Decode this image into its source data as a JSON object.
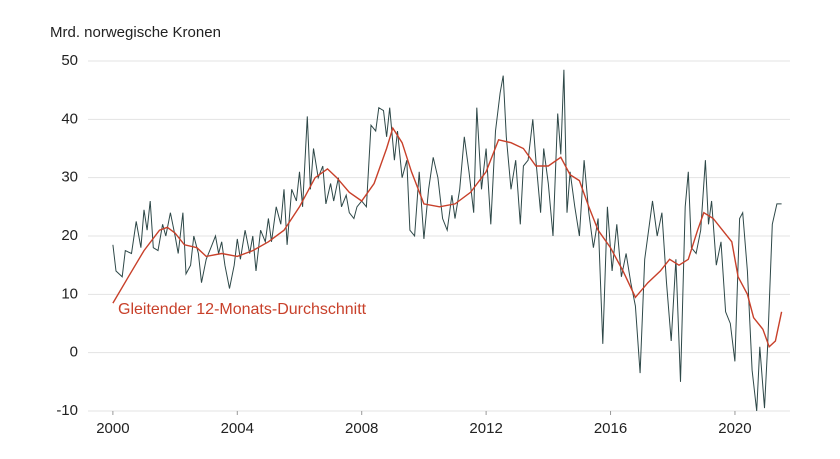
{
  "chart_data": {
    "type": "line",
    "ylabel": "Mrd. norwegische Kronen",
    "xlim": [
      1999.2,
      2021.77
    ],
    "xticks": [
      2000,
      2004,
      2008,
      2012,
      2016,
      2020
    ],
    "ylim": [
      -10,
      50
    ],
    "yticks": [
      -10,
      0,
      10,
      20,
      30,
      40,
      50
    ],
    "grid": true,
    "series": [
      {
        "color": "#2e4848",
        "x": [
          2000.0,
          2000.1,
          2000.3,
          2000.4,
          2000.6,
          2000.75,
          2000.9,
          2001.0,
          2001.1,
          2001.2,
          2001.3,
          2001.45,
          2001.6,
          2001.7,
          2001.85,
          2002.0,
          2002.1,
          2002.25,
          2002.35,
          2002.5,
          2002.6,
          2002.75,
          2002.85,
          2003.0,
          2003.15,
          2003.3,
          2003.4,
          2003.5,
          2003.6,
          2003.75,
          2003.9,
          2004.0,
          2004.1,
          2004.25,
          2004.4,
          2004.5,
          2004.6,
          2004.75,
          2004.9,
          2005.0,
          2005.1,
          2005.25,
          2005.4,
          2005.5,
          2005.6,
          2005.75,
          2005.9,
          2006.0,
          2006.1,
          2006.25,
          2006.35,
          2006.45,
          2006.6,
          2006.75,
          2006.85,
          2007.0,
          2007.1,
          2007.25,
          2007.35,
          2007.5,
          2007.6,
          2007.75,
          2007.85,
          2008.0,
          2008.15,
          2008.3,
          2008.45,
          2008.55,
          2008.7,
          2008.8,
          2008.9,
          2009.05,
          2009.15,
          2009.3,
          2009.45,
          2009.55,
          2009.7,
          2009.85,
          2010.0,
          2010.15,
          2010.3,
          2010.45,
          2010.6,
          2010.75,
          2010.9,
          2011.0,
          2011.15,
          2011.3,
          2011.45,
          2011.6,
          2011.7,
          2011.85,
          2012.0,
          2012.15,
          2012.3,
          2012.45,
          2012.55,
          2012.65,
          2012.8,
          2012.95,
          2013.1,
          2013.2,
          2013.35,
          2013.5,
          2013.6,
          2013.75,
          2013.85,
          2014.0,
          2014.15,
          2014.3,
          2014.4,
          2014.5,
          2014.6,
          2014.7,
          2014.85,
          2015.0,
          2015.15,
          2015.3,
          2015.45,
          2015.6,
          2015.75,
          2015.9,
          2016.05,
          2016.2,
          2016.35,
          2016.5,
          2016.65,
          2016.8,
          2016.95,
          2017.1,
          2017.25,
          2017.35,
          2017.5,
          2017.65,
          2017.8,
          2017.95,
          2018.1,
          2018.25,
          2018.4,
          2018.5,
          2018.6,
          2018.75,
          2018.9,
          2019.05,
          2019.15,
          2019.25,
          2019.4,
          2019.55,
          2019.7,
          2019.85,
          2020.0,
          2020.15,
          2020.25,
          2020.4,
          2020.55,
          2020.7,
          2020.8,
          2020.95,
          2021.05,
          2021.2,
          2021.35,
          2021.5
        ],
        "values": [
          18.5,
          14,
          13,
          17.5,
          17,
          22.5,
          18,
          24.5,
          21,
          26,
          18,
          17.5,
          22,
          20,
          24,
          20,
          17,
          24,
          13.5,
          15,
          20,
          17,
          12,
          16,
          18,
          20,
          17,
          19,
          15,
          11,
          15,
          19.5,
          16,
          21,
          17,
          20,
          14,
          21,
          19,
          23,
          19,
          25,
          22,
          28,
          18.5,
          28,
          26,
          31,
          25,
          40.5,
          28,
          35,
          30,
          32,
          25.5,
          29,
          26,
          30,
          25,
          27,
          24,
          23,
          25,
          26,
          25,
          39,
          38,
          42,
          41.5,
          37,
          42,
          33,
          38,
          30,
          33,
          21,
          20,
          31,
          19.5,
          28,
          33.5,
          30,
          23,
          21,
          27,
          23,
          28,
          37,
          31,
          24,
          42,
          28,
          35,
          22,
          38,
          44.5,
          47.5,
          37,
          28,
          33,
          22,
          32,
          33,
          40,
          33,
          24,
          35,
          29,
          20,
          41,
          34,
          48.5,
          24,
          31,
          25,
          20,
          33,
          24,
          18,
          23,
          1.5,
          25,
          14,
          22,
          13,
          17,
          12,
          8,
          -3.5,
          16,
          22,
          26,
          20,
          24,
          12,
          2,
          16,
          -5,
          25,
          31,
          18,
          17,
          21,
          33,
          22,
          26,
          15,
          19,
          7,
          5,
          -1.5,
          23,
          24,
          14,
          -3,
          -10,
          1,
          -9.5,
          1,
          22,
          25.5,
          25.5
        ]
      },
      {
        "name": "Gleitender 12-Monats-Durchschnitt",
        "color": "#c8402a",
        "x": [
          2000.0,
          2000.5,
          2001.0,
          2001.5,
          2001.75,
          2002.0,
          2002.3,
          2002.7,
          2003.0,
          2003.5,
          2004.0,
          2004.5,
          2005.0,
          2005.5,
          2006.0,
          2006.5,
          2006.9,
          2007.2,
          2007.6,
          2008.0,
          2008.4,
          2008.8,
          2009.0,
          2009.3,
          2009.6,
          2010.0,
          2010.5,
          2011.0,
          2011.5,
          2012.0,
          2012.4,
          2012.8,
          2013.2,
          2013.6,
          2014.0,
          2014.4,
          2014.7,
          2015.0,
          2015.3,
          2015.6,
          2016.0,
          2016.4,
          2016.8,
          2017.2,
          2017.6,
          2017.9,
          2018.2,
          2018.5,
          2018.8,
          2019.0,
          2019.3,
          2019.6,
          2019.9,
          2020.1,
          2020.4,
          2020.6,
          2020.9,
          2021.1,
          2021.3,
          2021.5
        ],
        "values": [
          8.5,
          13,
          17.5,
          21,
          21.5,
          20.5,
          18.5,
          18,
          16.5,
          17,
          16.5,
          17.5,
          19,
          21,
          25,
          30,
          31.5,
          30,
          27.5,
          26,
          29,
          35,
          38.5,
          36,
          31,
          25.5,
          25,
          25.5,
          27.5,
          31,
          36.5,
          36,
          35,
          32,
          32,
          33.5,
          30.5,
          29.5,
          25,
          21,
          18,
          14,
          9.5,
          12,
          14,
          16,
          15,
          16,
          21,
          24,
          23,
          21,
          19,
          13,
          10,
          6,
          4,
          1,
          2,
          7
        ]
      }
    ]
  }
}
